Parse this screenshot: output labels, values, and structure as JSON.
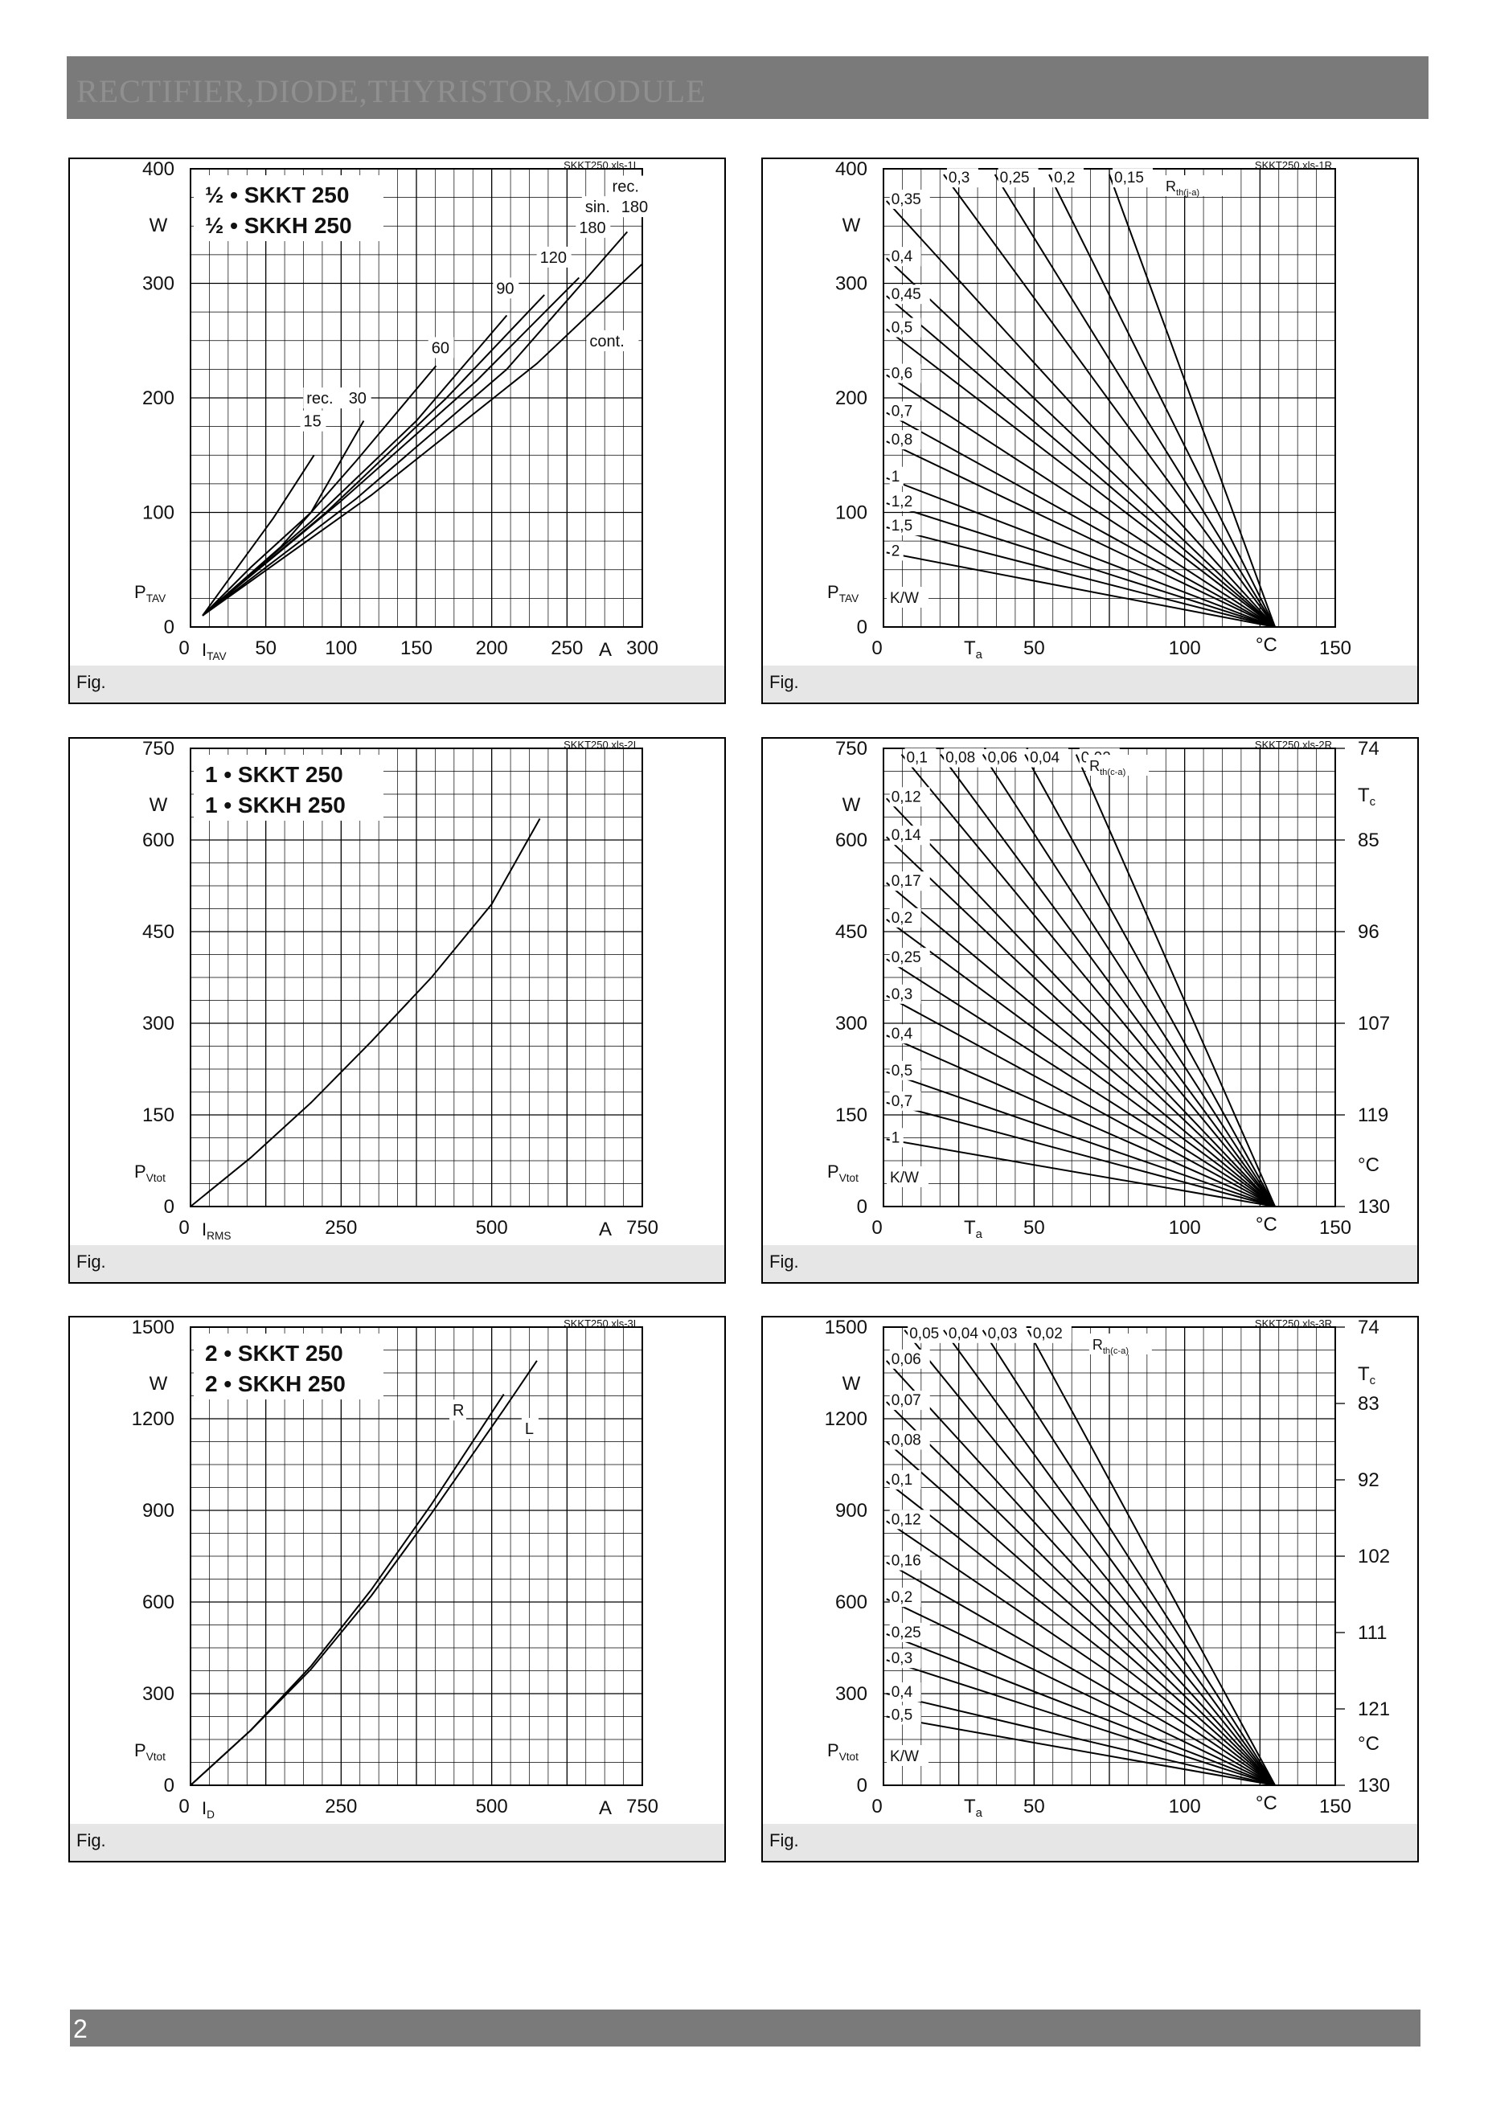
{
  "header": {
    "title": "RECTIFIER,DIODE,THYRISTOR,MODULE"
  },
  "footer": {
    "page_number": "2"
  },
  "colors": {
    "bar": "#7a7a7a",
    "grid": "#000000",
    "caption_bg": "#e6e6e6"
  },
  "chart_data": [
    {
      "id": "p1",
      "type": "line",
      "file_tag": "SKKT250.xls-1L",
      "title_lines": [
        "½ • SKKT 250",
        "½ • SKKH 250"
      ],
      "caption": "Fig.",
      "xlim": [
        0,
        300
      ],
      "ylim": [
        0,
        400
      ],
      "x_ticks": [
        0,
        50,
        100,
        150,
        200,
        250,
        300
      ],
      "x_tick_labels": [
        "0",
        "50",
        "100",
        "150",
        "200",
        "250",
        "300"
      ],
      "y_ticks": [
        0,
        100,
        200,
        300,
        400
      ],
      "y_tick_labels": [
        "0",
        "100",
        "200",
        "300",
        "400"
      ],
      "x_label": "I_TAV",
      "x_unit": "A",
      "y_label": "P_TAV",
      "y_unit": "W",
      "series": [
        {
          "name": "rec. 15",
          "x": [
            8,
            30,
            55,
            82
          ],
          "y": [
            10,
            50,
            95,
            150
          ]
        },
        {
          "name": "30",
          "x": [
            8,
            40,
            80,
            115
          ],
          "y": [
            10,
            52,
            100,
            180
          ]
        },
        {
          "name": "60",
          "x": [
            8,
            60,
            110,
            163
          ],
          "y": [
            10,
            70,
            145,
            228
          ]
        },
        {
          "name": "90",
          "x": [
            8,
            80,
            150,
            210
          ],
          "y": [
            10,
            92,
            180,
            272
          ]
        },
        {
          "name": "120",
          "x": [
            8,
            90,
            170,
            235
          ],
          "y": [
            10,
            100,
            200,
            290
          ]
        },
        {
          "name": "rec. 180",
          "x": [
            8,
            100,
            190,
            258
          ],
          "y": [
            10,
            110,
            215,
            305
          ]
        },
        {
          "name": "sin. 180",
          "x": [
            8,
            110,
            210,
            290
          ],
          "y": [
            10,
            112,
            225,
            345
          ]
        },
        {
          "name": "cont.",
          "x": [
            8,
            120,
            230,
            300
          ],
          "y": [
            10,
            115,
            230,
            317
          ]
        }
      ],
      "annotations": [
        {
          "text": "rec.",
          "x": 280,
          "y": 380
        },
        {
          "text": "sin.",
          "x": 262,
          "y": 362
        },
        {
          "text": "180",
          "x": 286,
          "y": 362
        },
        {
          "text": "180",
          "x": 258,
          "y": 344
        },
        {
          "text": "120",
          "x": 232,
          "y": 318
        },
        {
          "text": "90",
          "x": 203,
          "y": 291
        },
        {
          "text": "60",
          "x": 160,
          "y": 239
        },
        {
          "text": "cont.",
          "x": 265,
          "y": 245
        },
        {
          "text": "rec.",
          "x": 77,
          "y": 195
        },
        {
          "text": "30",
          "x": 105,
          "y": 195
        },
        {
          "text": "15",
          "x": 75,
          "y": 175
        }
      ]
    },
    {
      "id": "p2",
      "type": "line",
      "file_tag": "SKKT250.xls-1R",
      "caption": "Fig.",
      "xlim": [
        0,
        150
      ],
      "ylim": [
        0,
        400
      ],
      "x_ticks": [
        0,
        50,
        100,
        150
      ],
      "x_tick_labels": [
        "0",
        "50",
        "100",
        "150"
      ],
      "y_ticks": [
        0,
        100,
        200,
        300,
        400
      ],
      "y_tick_labels": [
        "0",
        "100",
        "200",
        "300",
        "400"
      ],
      "x_label": "T_a",
      "x_unit": "°C",
      "y_label": "P_TAV",
      "y_unit": "W",
      "rth_label": "R_th(j-a)",
      "rth_unit": "K/W",
      "convergence": [
        130,
        0
      ],
      "rth_values": [
        "0,3",
        "0,25",
        "0,2",
        "0,15",
        "0,35",
        "0,4",
        "0,45",
        "0,5",
        "0,6",
        "0,7",
        "0,8",
        "1",
        "1,2",
        "1,5",
        "2"
      ],
      "lines": [
        {
          "label": "0,3",
          "x0": 20,
          "y0": 395
        },
        {
          "label": "0,25",
          "x0": 37,
          "y0": 395
        },
        {
          "label": "0,2",
          "x0": 55,
          "y0": 395
        },
        {
          "label": "0,15",
          "x0": 75,
          "y0": 395
        },
        {
          "label": "0,35",
          "x0": 1,
          "y0": 372
        },
        {
          "label": "0,4",
          "x0": 1,
          "y0": 322
        },
        {
          "label": "0,45",
          "x0": 1,
          "y0": 289
        },
        {
          "label": "0,5",
          "x0": 1,
          "y0": 260
        },
        {
          "label": "0,6",
          "x0": 1,
          "y0": 220
        },
        {
          "label": "0,7",
          "x0": 1,
          "y0": 187
        },
        {
          "label": "0,8",
          "x0": 1,
          "y0": 162
        },
        {
          "label": "1",
          "x0": 1,
          "y0": 130
        },
        {
          "label": "1,2",
          "x0": 1,
          "y0": 108
        },
        {
          "label": "1,5",
          "x0": 1,
          "y0": 87
        },
        {
          "label": "2",
          "x0": 1,
          "y0": 65
        }
      ]
    },
    {
      "id": "p3",
      "type": "line",
      "file_tag": "SKKT250.xls-2L",
      "title_lines": [
        "1 • SKKT 250",
        "1 • SKKH 250"
      ],
      "caption": "Fig.",
      "xlim": [
        0,
        750
      ],
      "ylim": [
        0,
        750
      ],
      "x_ticks": [
        0,
        250,
        500,
        750
      ],
      "x_tick_labels": [
        "0",
        "250",
        "500",
        "750"
      ],
      "y_ticks": [
        0,
        150,
        300,
        450,
        600,
        750
      ],
      "y_tick_labels": [
        "0",
        "150",
        "300",
        "450",
        "600",
        "750"
      ],
      "x_label": "I_RMS",
      "x_unit": "A",
      "y_label": "P_Vtot",
      "y_unit": "W",
      "series": [
        {
          "name": "",
          "x": [
            0,
            100,
            200,
            300,
            400,
            500,
            580
          ],
          "y": [
            0,
            80,
            170,
            270,
            375,
            495,
            635
          ]
        }
      ]
    },
    {
      "id": "p4",
      "type": "line",
      "file_tag": "SKKT250.xls-2R",
      "caption": "Fig.",
      "xlim": [
        0,
        150
      ],
      "ylim": [
        0,
        750
      ],
      "x_ticks": [
        0,
        50,
        100,
        150
      ],
      "x_tick_labels": [
        "0",
        "50",
        "100",
        "150"
      ],
      "y_ticks": [
        0,
        150,
        300,
        450,
        600,
        750
      ],
      "y_tick_labels": [
        "0",
        "150",
        "300",
        "450",
        "600",
        "750"
      ],
      "right_tick_labels": [
        "130",
        "119",
        "107",
        "96",
        "85",
        "74"
      ],
      "right_label": "T_c",
      "right_unit": "°C",
      "x_label": "T_a",
      "x_unit": "°C",
      "y_label": "P_Vtot",
      "y_unit": "W",
      "rth_label": "R_th(c-a)",
      "rth_unit": "K/W",
      "convergence": [
        130,
        0
      ],
      "rth_values": [
        "0,1",
        "0,08",
        "0,06",
        "0,04",
        "0,02",
        "0,12",
        "0,14",
        "0,17",
        "0,2",
        "0,25",
        "0,3",
        "0,4",
        "0,5",
        "0,7",
        "1"
      ],
      "lines": [
        {
          "label": "0,1",
          "x0": 6,
          "y0": 740
        },
        {
          "label": "0,08",
          "x0": 19,
          "y0": 740
        },
        {
          "label": "0,06",
          "x0": 33,
          "y0": 740
        },
        {
          "label": "0,04",
          "x0": 47,
          "y0": 740
        },
        {
          "label": "0,02",
          "x0": 64,
          "y0": 740
        },
        {
          "label": "0,12",
          "x0": 1,
          "y0": 668
        },
        {
          "label": "0,14",
          "x0": 1,
          "y0": 605
        },
        {
          "label": "0,17",
          "x0": 1,
          "y0": 530
        },
        {
          "label": "0,2",
          "x0": 1,
          "y0": 470
        },
        {
          "label": "0,25",
          "x0": 1,
          "y0": 405
        },
        {
          "label": "0,3",
          "x0": 1,
          "y0": 345
        },
        {
          "label": "0,4",
          "x0": 1,
          "y0": 280
        },
        {
          "label": "0,5",
          "x0": 1,
          "y0": 220
        },
        {
          "label": "0,7",
          "x0": 1,
          "y0": 170
        },
        {
          "label": "1",
          "x0": 1,
          "y0": 110
        }
      ]
    },
    {
      "id": "p5",
      "type": "line",
      "file_tag": "SKKT250.xls-3L",
      "title_lines": [
        "2 • SKKT 250",
        "2 • SKKH 250"
      ],
      "caption": "Fig.",
      "xlim": [
        0,
        750
      ],
      "ylim": [
        0,
        1500
      ],
      "x_ticks": [
        0,
        250,
        500,
        750
      ],
      "x_tick_labels": [
        "0",
        "250",
        "500",
        "750"
      ],
      "y_ticks": [
        0,
        300,
        600,
        900,
        1200,
        1500
      ],
      "y_tick_labels": [
        "0",
        "300",
        "600",
        "900",
        "1200",
        "1500"
      ],
      "x_label": "I_D",
      "x_unit": "A",
      "y_label": "P_Vtot",
      "y_unit": "W",
      "series": [
        {
          "name": "R",
          "x": [
            0,
            100,
            200,
            300,
            400,
            520
          ],
          "y": [
            0,
            180,
            390,
            640,
            920,
            1280
          ]
        },
        {
          "name": "L",
          "x": [
            0,
            100,
            200,
            300,
            400,
            520,
            575
          ],
          "y": [
            0,
            180,
            380,
            620,
            890,
            1230,
            1390
          ]
        }
      ],
      "annotations": [
        {
          "text": "R",
          "x": 435,
          "y": 1210
        },
        {
          "text": "L",
          "x": 555,
          "y": 1150
        }
      ]
    },
    {
      "id": "p6",
      "type": "line",
      "file_tag": "SKKT250.xls-3R",
      "caption": "Fig.",
      "xlim": [
        0,
        150
      ],
      "ylim": [
        0,
        1500
      ],
      "x_ticks": [
        0,
        50,
        100,
        150
      ],
      "x_tick_labels": [
        "0",
        "50",
        "100",
        "150"
      ],
      "y_ticks": [
        0,
        300,
        600,
        900,
        1200,
        1500
      ],
      "y_tick_labels": [
        "0",
        "300",
        "600",
        "900",
        "1200",
        "1500"
      ],
      "right_tick_labels": [
        "130",
        "121",
        "111",
        "102",
        "92",
        "83",
        "74"
      ],
      "right_label": "T_c",
      "right_unit": "°C",
      "x_label": "T_a",
      "x_unit": "°C",
      "y_label": "P_Vtot",
      "y_unit": "W",
      "rth_label": "R_th(c-a)",
      "rth_unit": "K/W",
      "convergence": [
        130,
        0
      ],
      "rth_values": [
        "0,05",
        "0,04",
        "0,03",
        "0,02",
        "0,06",
        "0,07",
        "0,08",
        "0,1",
        "0,12",
        "0,16",
        "0,2",
        "0,25",
        "0,3",
        "0,4",
        "0,5"
      ],
      "lines": [
        {
          "label": "0,05",
          "x0": 7,
          "y0": 1490
        },
        {
          "label": "0,04",
          "x0": 20,
          "y0": 1490
        },
        {
          "label": "0,03",
          "x0": 33,
          "y0": 1490
        },
        {
          "label": "0,02",
          "x0": 48,
          "y0": 1490
        },
        {
          "label": "0,06",
          "x0": 1,
          "y0": 1390
        },
        {
          "label": "0,07",
          "x0": 1,
          "y0": 1255
        },
        {
          "label": "0,08",
          "x0": 1,
          "y0": 1125
        },
        {
          "label": "0,1",
          "x0": 1,
          "y0": 995
        },
        {
          "label": "0,12",
          "x0": 1,
          "y0": 865
        },
        {
          "label": "0,16",
          "x0": 1,
          "y0": 730
        },
        {
          "label": "0,2",
          "x0": 1,
          "y0": 610
        },
        {
          "label": "0,25",
          "x0": 1,
          "y0": 495
        },
        {
          "label": "0,3",
          "x0": 1,
          "y0": 410
        },
        {
          "label": "0,4",
          "x0": 1,
          "y0": 300
        },
        {
          "label": "0,5",
          "x0": 1,
          "y0": 225
        }
      ]
    }
  ]
}
